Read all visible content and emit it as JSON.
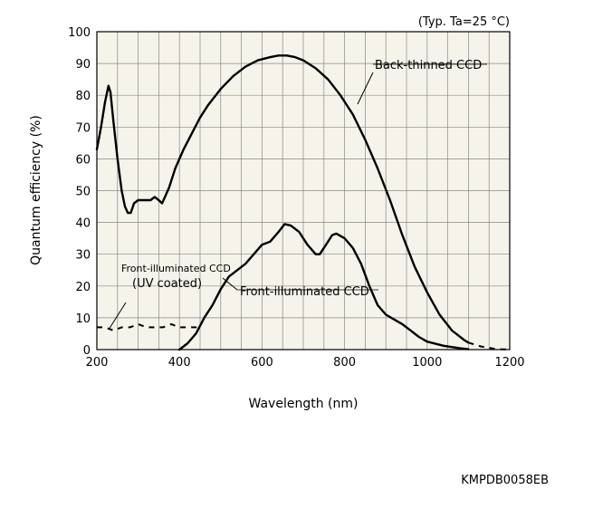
{
  "chart_data": {
    "type": "line",
    "condition": "(Typ. Ta=25 °C)",
    "xlabel": "Wavelength (nm)",
    "ylabel": "Quantum efficiency (%)",
    "xlim": [
      200,
      1200
    ],
    "ylim": [
      0,
      100
    ],
    "xticks": [
      200,
      400,
      600,
      800,
      1000,
      1200
    ],
    "yticks": [
      0,
      10,
      20,
      30,
      40,
      50,
      60,
      70,
      80,
      90,
      100
    ],
    "x_grid_step": 50,
    "grid": true,
    "footer_code": "KMPDB0058EB",
    "series": [
      {
        "name": "Back-thinned CCD",
        "style": "solid",
        "points": [
          [
            200,
            63
          ],
          [
            210,
            70
          ],
          [
            220,
            78
          ],
          [
            228,
            83
          ],
          [
            233,
            81
          ],
          [
            240,
            72
          ],
          [
            250,
            60
          ],
          [
            260,
            50
          ],
          [
            268,
            45
          ],
          [
            275,
            43
          ],
          [
            282,
            43
          ],
          [
            290,
            46
          ],
          [
            300,
            47
          ],
          [
            310,
            47
          ],
          [
            320,
            47
          ],
          [
            330,
            47
          ],
          [
            340,
            48
          ],
          [
            350,
            47
          ],
          [
            358,
            46
          ],
          [
            365,
            48
          ],
          [
            375,
            51
          ],
          [
            390,
            57
          ],
          [
            410,
            63
          ],
          [
            430,
            68
          ],
          [
            450,
            73
          ],
          [
            470,
            77
          ],
          [
            500,
            82
          ],
          [
            530,
            86
          ],
          [
            560,
            89
          ],
          [
            590,
            91
          ],
          [
            620,
            92
          ],
          [
            640,
            92.5
          ],
          [
            660,
            92.5
          ],
          [
            680,
            92
          ],
          [
            700,
            91
          ],
          [
            730,
            88.5
          ],
          [
            760,
            85
          ],
          [
            790,
            80
          ],
          [
            820,
            74
          ],
          [
            850,
            66
          ],
          [
            880,
            57
          ],
          [
            910,
            47
          ],
          [
            940,
            36
          ],
          [
            970,
            26
          ],
          [
            1000,
            18
          ],
          [
            1030,
            11
          ],
          [
            1060,
            6
          ],
          [
            1090,
            3
          ],
          [
            1100,
            2.2
          ]
        ]
      },
      {
        "name": "Back-thinned CCD",
        "style": "dashed",
        "points": [
          [
            1100,
            2.2
          ],
          [
            1130,
            1
          ],
          [
            1160,
            0.3
          ],
          [
            1180,
            0.1
          ],
          [
            1200,
            0.05
          ]
        ]
      },
      {
        "name": "Front-illuminated CCD",
        "style": "solid",
        "points": [
          [
            400,
            0
          ],
          [
            420,
            2
          ],
          [
            440,
            5
          ],
          [
            460,
            10
          ],
          [
            480,
            14
          ],
          [
            500,
            19
          ],
          [
            520,
            23
          ],
          [
            540,
            25
          ],
          [
            560,
            27
          ],
          [
            580,
            30
          ],
          [
            600,
            33
          ],
          [
            620,
            34
          ],
          [
            640,
            37
          ],
          [
            655,
            39.5
          ],
          [
            670,
            39
          ],
          [
            690,
            37
          ],
          [
            710,
            33
          ],
          [
            730,
            30
          ],
          [
            740,
            30
          ],
          [
            755,
            33
          ],
          [
            770,
            36
          ],
          [
            780,
            36.5
          ],
          [
            800,
            35
          ],
          [
            820,
            32
          ],
          [
            840,
            27
          ],
          [
            860,
            20
          ],
          [
            880,
            14
          ],
          [
            900,
            11
          ],
          [
            920,
            9.5
          ],
          [
            940,
            8
          ],
          [
            960,
            6
          ],
          [
            980,
            4
          ],
          [
            1000,
            2.5
          ],
          [
            1040,
            1.2
          ],
          [
            1080,
            0.4
          ],
          [
            1100,
            0.1
          ]
        ]
      },
      {
        "name": "Front-illuminated CCD (UV coated)",
        "style": "dashed",
        "points": [
          [
            200,
            7
          ],
          [
            220,
            7
          ],
          [
            240,
            6
          ],
          [
            260,
            7
          ],
          [
            280,
            7
          ],
          [
            300,
            8
          ],
          [
            320,
            7
          ],
          [
            340,
            7
          ],
          [
            360,
            7
          ],
          [
            380,
            8
          ],
          [
            400,
            7
          ],
          [
            420,
            7
          ],
          [
            440,
            7
          ],
          [
            450,
            8
          ]
        ]
      }
    ],
    "labels": {
      "back_thinned": "Back-thinned CCD",
      "front_illuminated": "Front-illuminated CCD",
      "front_uv_line1": "Front-illuminated CCD",
      "front_uv_line2": "(UV coated)"
    }
  }
}
